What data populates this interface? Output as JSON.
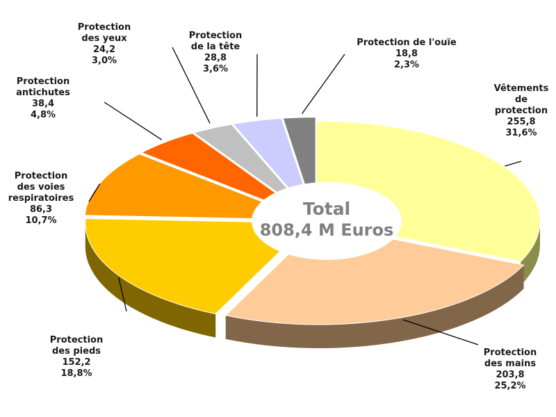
{
  "chart_data": {
    "type": "pie",
    "title": "",
    "center_label": {
      "line1": "Total",
      "line2": "808,4 M Euros"
    },
    "slices": [
      {
        "label_lines": [
          "Vêtements",
          "de",
          "protection"
        ],
        "value": 255.8,
        "value_text": "255,8",
        "percent_text": "31,6%",
        "color": "#ffff99",
        "side_color": "#8c8c4a",
        "exploded": false
      },
      {
        "label_lines": [
          "Protection",
          "des mains"
        ],
        "value": 203.8,
        "value_text": "203,8",
        "percent_text": "25,2%",
        "color": "#ffcc99",
        "side_color": "#82664a",
        "exploded": true
      },
      {
        "label_lines": [
          "Protection",
          "des pieds"
        ],
        "value": 152.2,
        "value_text": "152,2",
        "percent_text": "18,8%",
        "color": "#ffcc00",
        "side_color": "#806600",
        "exploded": true
      },
      {
        "label_lines": [
          "Protection",
          "des voies",
          "respiratoires"
        ],
        "value": 86.3,
        "value_text": "86,3",
        "percent_text": "10,7%",
        "color": "#ff9900",
        "side_color": "#804d00",
        "exploded": true
      },
      {
        "label_lines": [
          "Protection",
          "antichutes"
        ],
        "value": 38.4,
        "value_text": "38,4",
        "percent_text": "4,8%",
        "color": "#ff6600",
        "side_color": "#803300",
        "exploded": true
      },
      {
        "label_lines": [
          "Protection",
          "des yeux"
        ],
        "value": 24.2,
        "value_text": "24,2",
        "percent_text": "3,0%",
        "color": "#c0c0c0",
        "side_color": "#606060",
        "exploded": true
      },
      {
        "label_lines": [
          "Protection",
          "de la tête"
        ],
        "value": 28.8,
        "value_text": "28,8",
        "percent_text": "3,6%",
        "color": "#ccccff",
        "side_color": "#666680",
        "exploded": true
      },
      {
        "label_lines": [
          "Protection de l'ouïe"
        ],
        "value": 18.8,
        "value_text": "18,8",
        "percent_text": "2,3%",
        "color": "#808080",
        "side_color": "#404040",
        "exploded": true
      }
    ]
  }
}
